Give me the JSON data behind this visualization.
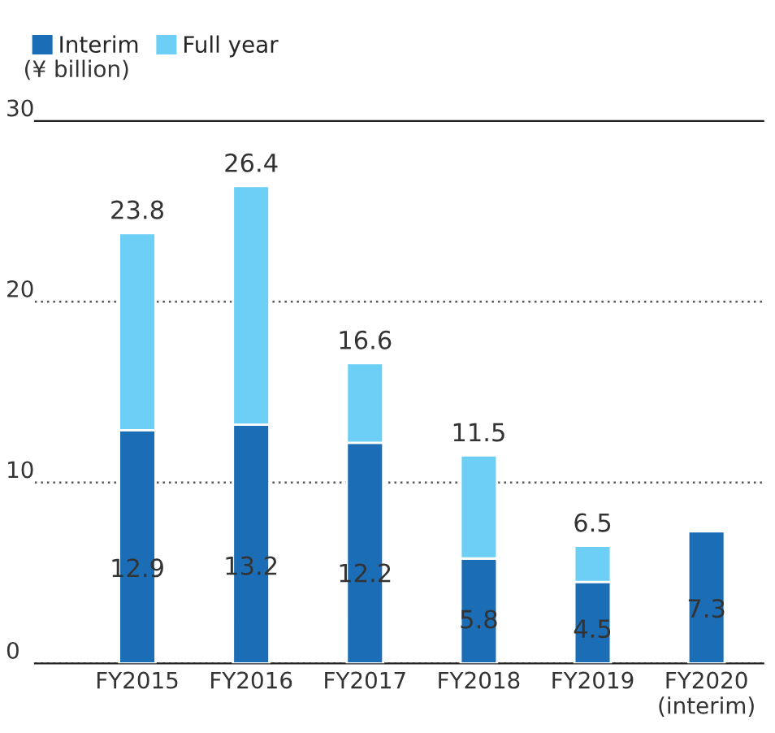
{
  "chart_data": {
    "type": "bar",
    "stacked": true,
    "ylabel": "(¥ billion)",
    "categories": [
      "FY2015",
      "FY2016",
      "FY2017",
      "FY2018",
      "FY2019",
      "FY2020\n(interim)"
    ],
    "series": [
      {
        "name": "Interim",
        "color": "#1b6db6",
        "values": [
          12.9,
          13.2,
          12.2,
          5.8,
          4.5,
          7.3
        ],
        "value_labels": [
          "12.9",
          "13.2",
          "12.2",
          "5.8",
          "4.5",
          "7.3"
        ]
      },
      {
        "name": "Full year",
        "color": "#6dcff6",
        "values": [
          10.9,
          13.2,
          4.4,
          5.7,
          2.0,
          null
        ]
      }
    ],
    "totals": [
      "23.8",
      "26.4",
      "16.6",
      "11.5",
      "6.5",
      null
    ],
    "ylim": [
      0,
      30
    ],
    "yticks": [
      0,
      10,
      20,
      30
    ],
    "grid": "y",
    "legend": "top left"
  }
}
